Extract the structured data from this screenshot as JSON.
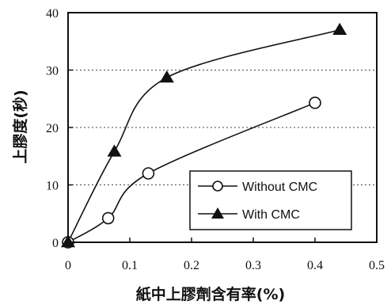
{
  "chart_data": {
    "type": "line",
    "xlabel": "紙中上膠劑含有率(%)",
    "ylabel": "上膠度(秒)",
    "xlim": [
      0,
      0.5
    ],
    "ylim": [
      0,
      40
    ],
    "xticks": [
      "0",
      "0.1",
      "0.2",
      "0.3",
      "0.4",
      "0.5"
    ],
    "yticks": [
      "0",
      "10",
      "20",
      "30",
      "40"
    ],
    "grid": "horizontal dotted",
    "legend_position": "bottom-right",
    "series": [
      {
        "name": "Without CMC",
        "marker": "open-circle",
        "points": [
          [
            0,
            0
          ],
          [
            0.065,
            4.2
          ],
          [
            0.13,
            12.0
          ],
          [
            0.4,
            24.3
          ]
        ]
      },
      {
        "name": "With CMC",
        "marker": "filled-triangle",
        "points": [
          [
            0,
            0
          ],
          [
            0.075,
            15.8
          ],
          [
            0.16,
            28.7
          ],
          [
            0.44,
            37.0
          ]
        ]
      }
    ]
  }
}
